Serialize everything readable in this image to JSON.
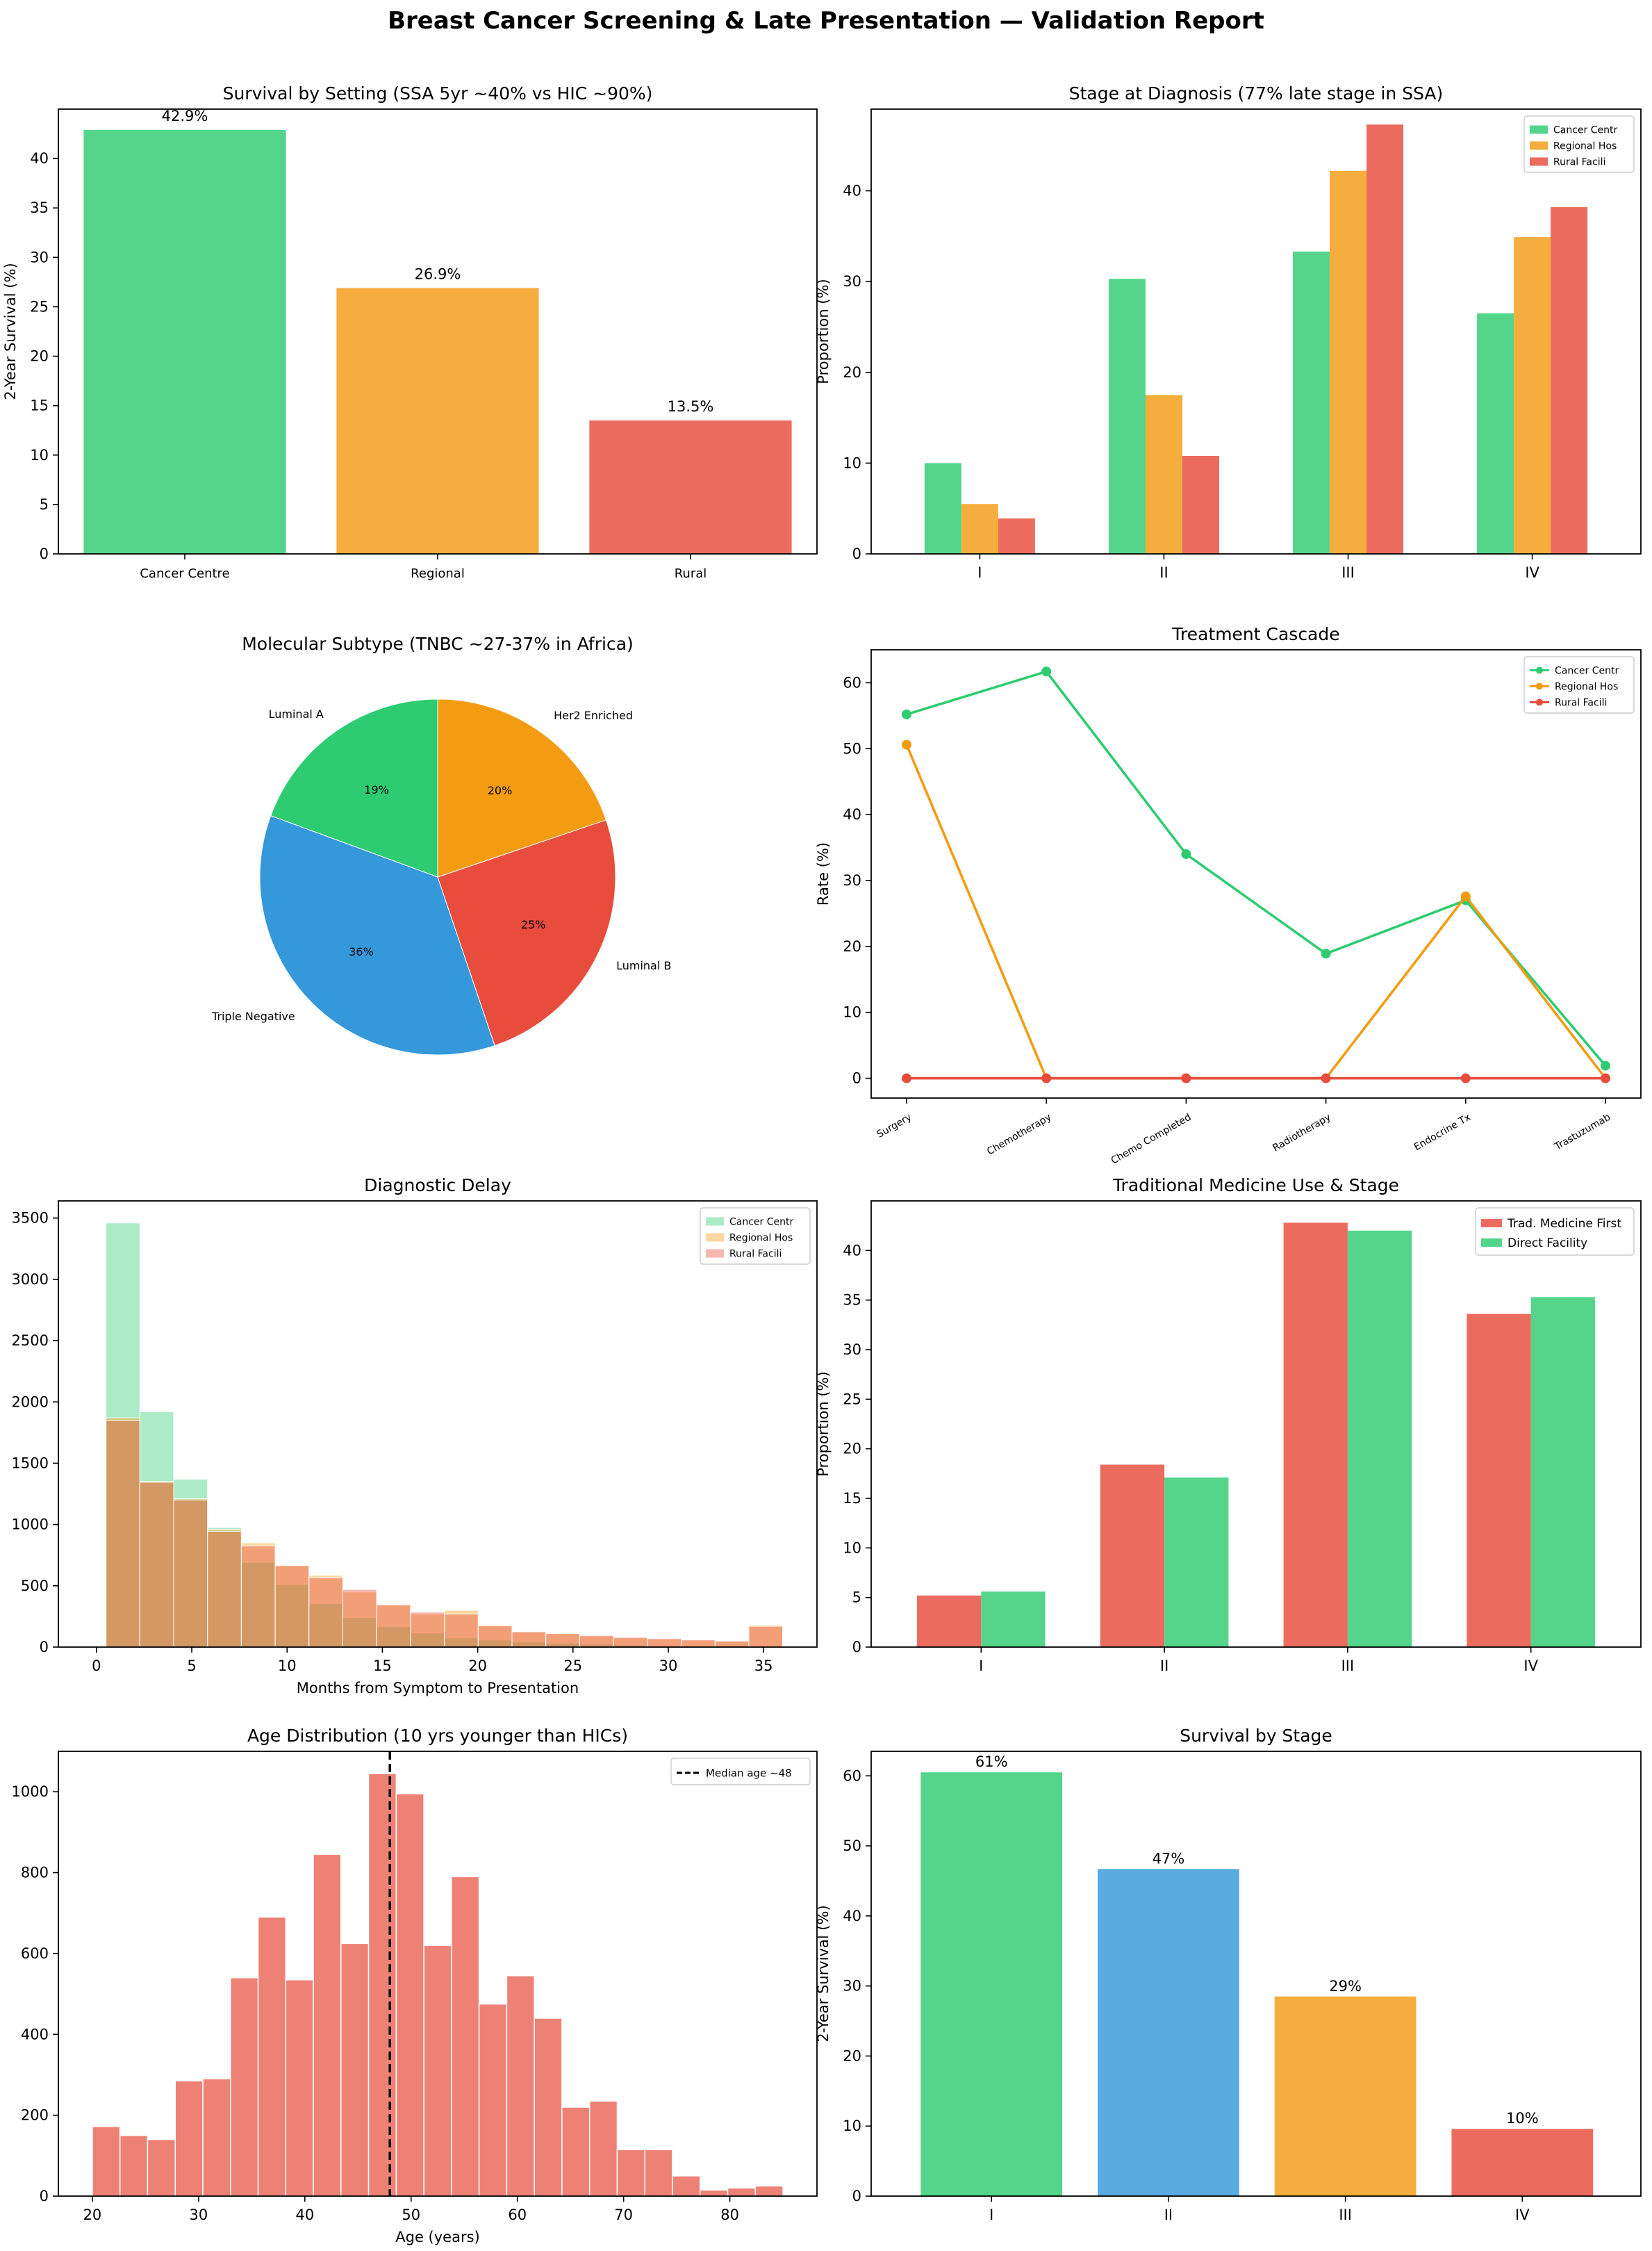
{
  "title": "Breast Cancer Screening & Late Presentation — Validation Report",
  "colors": {
    "green": "#2ecc71",
    "orange": "#f39c12",
    "red": "#e74c3c",
    "blue": "#3498db",
    "bar_alpha": 0.82
  },
  "chart_data": [
    {
      "type": "bar",
      "title": "Survival by Setting (SSA 5yr ~40% vs HIC ~90%)",
      "ylabel": "2-Year Survival (%)",
      "xlabel": "",
      "categories": [
        "Cancer Centre",
        "Regional",
        "Rural"
      ],
      "values": [
        42.9,
        26.9,
        13.5
      ],
      "value_labels": [
        "42.9%",
        "26.9%",
        "13.5%"
      ],
      "colors": [
        "#2ecc71",
        "#f39c12",
        "#e74c3c"
      ],
      "ylim": [
        0,
        45
      ],
      "yticks": [
        0,
        5,
        10,
        15,
        20,
        25,
        30,
        35,
        40
      ]
    },
    {
      "type": "bar",
      "title": "Stage at Diagnosis (77% late stage in SSA)",
      "ylabel": "Proportion (%)",
      "categories": [
        "I",
        "II",
        "III",
        "IV"
      ],
      "series": [
        {
          "name": "Cancer Centr",
          "color": "#2ecc71",
          "values": [
            10.0,
            30.3,
            33.3,
            26.5
          ]
        },
        {
          "name": "Regional Hos",
          "color": "#f39c12",
          "values": [
            5.5,
            17.5,
            42.2,
            34.9
          ]
        },
        {
          "name": "Rural Facili",
          "color": "#e74c3c",
          "values": [
            3.9,
            10.8,
            47.3,
            38.2
          ]
        }
      ],
      "legend": "top-right",
      "ylim": [
        0,
        49
      ],
      "yticks": [
        0,
        10,
        20,
        30,
        40
      ]
    },
    {
      "type": "pie",
      "title": "Molecular Subtype (TNBC ~27-37% in Africa)",
      "labels": [
        "Luminal A",
        "Triple Negative",
        "Luminal B",
        "Her2 Enriched"
      ],
      "values": [
        19.4,
        35.8,
        25.0,
        19.8
      ],
      "pct_labels": [
        "19%",
        "36%",
        "25%",
        "20%"
      ],
      "colors": [
        "#2ecc71",
        "#3498db",
        "#e74c3c",
        "#f39c12"
      ]
    },
    {
      "type": "line",
      "title": "Treatment Cascade",
      "ylabel": "Rate (%)",
      "categories": [
        "Surgery",
        "Chemotherapy",
        "Chemo Completed",
        "Radiotherapy",
        "Endocrine Tx",
        "Trastuzumab"
      ],
      "series": [
        {
          "name": "Cancer Centr",
          "color": "#2ecc71",
          "values": [
            55.2,
            61.7,
            34.0,
            18.9,
            27.0,
            1.9
          ]
        },
        {
          "name": "Regional Hos",
          "color": "#f39c12",
          "values": [
            50.6,
            0,
            0,
            0,
            27.6,
            0
          ]
        },
        {
          "name": "Rural Facili",
          "color": "#e74c3c",
          "values": [
            0,
            0,
            0,
            0,
            0,
            0
          ]
        }
      ],
      "legend": "top-right",
      "ylim": [
        -3,
        65
      ],
      "yticks": [
        0,
        10,
        20,
        30,
        40,
        50,
        60
      ]
    },
    {
      "type": "histogram",
      "title": "Diagnostic Delay",
      "xlabel": "Months from Symptom to Presentation",
      "ylabel": "",
      "bin_edges": [
        0.5,
        2.275,
        4.05,
        5.825,
        7.6,
        9.375,
        11.15,
        12.925,
        14.7,
        16.475,
        18.25,
        20.025,
        21.8,
        23.575,
        25.35,
        27.125,
        28.9,
        30.675,
        32.45,
        34.225,
        36.0
      ],
      "series": [
        {
          "name": "Cancer Centr",
          "color": "#2ecc71",
          "alpha": 0.4,
          "counts": [
            3460,
            1920,
            1370,
            975,
            690,
            510,
            355,
            240,
            165,
            115,
            75,
            58,
            42,
            30,
            22,
            18,
            12,
            9,
            6,
            5
          ]
        },
        {
          "name": "Regional Hos",
          "color": "#f39c12",
          "alpha": 0.4,
          "counts": [
            1870,
            1350,
            1210,
            960,
            850,
            670,
            585,
            450,
            350,
            270,
            300,
            180,
            130,
            115,
            90,
            75,
            65,
            55,
            45,
            180
          ]
        },
        {
          "name": "Rural Facili",
          "color": "#e74c3c",
          "alpha": 0.4,
          "counts": [
            1850,
            1345,
            1200,
            945,
            825,
            665,
            565,
            470,
            345,
            285,
            270,
            175,
            125,
            110,
            95,
            80,
            70,
            60,
            50,
            170
          ]
        }
      ],
      "legend": "top-right",
      "xlim": [
        -2,
        37.8
      ],
      "ylim": [
        0,
        3640
      ],
      "xticks": [
        0,
        5,
        10,
        15,
        20,
        25,
        30,
        35
      ],
      "yticks": [
        0,
        500,
        1000,
        1500,
        2000,
        2500,
        3000,
        3500
      ]
    },
    {
      "type": "bar",
      "title": "Traditional Medicine Use & Stage",
      "ylabel": "Proportion (%)",
      "categories": [
        "I",
        "II",
        "III",
        "IV"
      ],
      "series": [
        {
          "name": "Trad. Medicine First",
          "color": "#e74c3c",
          "values": [
            5.2,
            18.4,
            42.8,
            33.6
          ]
        },
        {
          "name": "Direct Facility",
          "color": "#2ecc71",
          "values": [
            5.6,
            17.1,
            42.0,
            35.3
          ]
        }
      ],
      "legend": "top-right",
      "ylim": [
        0,
        45
      ],
      "yticks": [
        0,
        5,
        10,
        15,
        20,
        25,
        30,
        35,
        40
      ]
    },
    {
      "type": "histogram",
      "title": "Age Distribution (10 yrs younger than HICs)",
      "xlabel": "Age (years)",
      "ylabel": "",
      "bin_edges": [
        20,
        22.6,
        25.2,
        27.8,
        30.4,
        33,
        35.6,
        38.2,
        40.8,
        43.4,
        46,
        48.6,
        51.2,
        53.8,
        56.4,
        59,
        61.6,
        64.2,
        66.8,
        69.4,
        72,
        74.6,
        77.2,
        79.8,
        82.4,
        85
      ],
      "counts": [
        172,
        150,
        140,
        285,
        290,
        540,
        690,
        535,
        845,
        625,
        1045,
        995,
        620,
        790,
        475,
        545,
        440,
        220,
        235,
        115,
        115,
        50,
        15,
        20,
        25
      ],
      "color": "#e74c3c",
      "reference_line": {
        "x": 48,
        "label": "Median age ~48",
        "style": "dashed"
      },
      "legend": "top-right",
      "xlim": [
        16.8,
        88.2
      ],
      "ylim": [
        0,
        1100
      ],
      "xticks": [
        20,
        30,
        40,
        50,
        60,
        70,
        80
      ],
      "yticks": [
        0,
        200,
        400,
        600,
        800,
        1000
      ]
    },
    {
      "type": "bar",
      "title": "Survival by Stage",
      "ylabel": "2-Year Survival (%)",
      "categories": [
        "I",
        "II",
        "III",
        "IV"
      ],
      "values": [
        60.5,
        46.7,
        28.5,
        9.6
      ],
      "value_labels": [
        "61%",
        "47%",
        "29%",
        "10%"
      ],
      "colors": [
        "#2ecc71",
        "#3498db",
        "#f39c12",
        "#e74c3c"
      ],
      "ylim": [
        0,
        63.5
      ],
      "yticks": [
        0,
        10,
        20,
        30,
        40,
        50,
        60
      ]
    }
  ]
}
